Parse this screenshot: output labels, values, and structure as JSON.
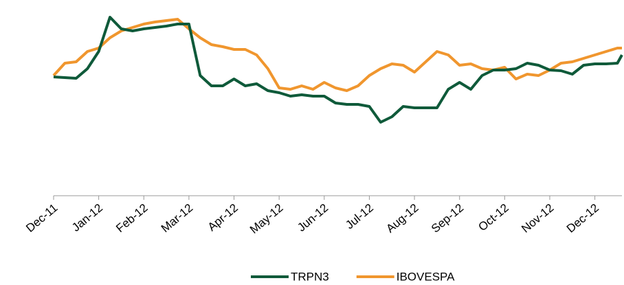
{
  "chart_data": {
    "type": "line",
    "x": [
      0,
      0.25,
      0.5,
      0.75,
      1,
      1.25,
      1.5,
      1.75,
      2,
      2.25,
      2.5,
      2.75,
      3,
      3.25,
      3.5,
      3.75,
      4,
      4.25,
      4.5,
      4.75,
      5,
      5.25,
      5.5,
      5.75,
      6,
      6.25,
      6.5,
      6.75,
      7,
      7.25,
      7.5,
      7.75,
      8,
      8.25,
      8.5,
      8.75,
      9,
      9.25,
      9.5,
      9.75,
      10,
      10.25,
      10.5,
      10.75,
      11,
      11.25,
      11.5,
      11.75,
      12,
      12.25,
      12.5,
      12.6
    ],
    "xlim": [
      0,
      12.6
    ],
    "xticks": [
      {
        "value": 0,
        "label": "Dec-11"
      },
      {
        "value": 1,
        "label": "Jan-12"
      },
      {
        "value": 2,
        "label": "Feb-12"
      },
      {
        "value": 3,
        "label": "Mar-12"
      },
      {
        "value": 4,
        "label": "Apr-12"
      },
      {
        "value": 5,
        "label": "May-12"
      },
      {
        "value": 6,
        "label": "Jun-12"
      },
      {
        "value": 7,
        "label": "Jul-12"
      },
      {
        "value": 8,
        "label": "Aug-12"
      },
      {
        "value": 9,
        "label": "Sep-12"
      },
      {
        "value": 10,
        "label": "Oct-12"
      },
      {
        "value": 11,
        "label": "Nov-12"
      },
      {
        "value": 12,
        "label": "Dec-12"
      }
    ],
    "ylim": [
      14,
      154
    ],
    "legend": "bottom",
    "series": [
      {
        "name": "TRPN3",
        "color": "#0f5a3a",
        "values": [
          100.5,
          100,
          99.5,
          106.5,
          119,
          144,
          135.5,
          134,
          135.5,
          136.5,
          137.5,
          139,
          139,
          101.5,
          94,
          94,
          99,
          94,
          95.5,
          90.5,
          89,
          86.5,
          87.5,
          86.5,
          86.5,
          81.5,
          80.5,
          80.5,
          79,
          67.5,
          71.5,
          79,
          78,
          78,
          78,
          91.5,
          96.5,
          91.5,
          101.5,
          105.5,
          105.5,
          106.5,
          110.5,
          109,
          105.5,
          105,
          102.5,
          109,
          110,
          110,
          110.5,
          116.5
        ]
      },
      {
        "name": "IBOVESPA",
        "color": "#f0962e",
        "values": [
          101.5,
          110.5,
          111.5,
          119,
          121.5,
          129,
          134,
          136.5,
          139,
          140.5,
          141.5,
          142.5,
          135.5,
          129,
          124,
          122.5,
          120.5,
          120.5,
          116.5,
          106.5,
          92.5,
          91.5,
          94,
          91.5,
          96.5,
          92.5,
          90.5,
          94,
          101.5,
          106.5,
          110,
          109,
          104,
          111.5,
          119,
          116.5,
          109,
          110,
          106.5,
          105.5,
          107.5,
          99,
          102.5,
          101.5,
          105.5,
          110.5,
          111.5,
          114,
          116.5,
          119,
          121.5,
          121.5
        ]
      }
    ]
  }
}
